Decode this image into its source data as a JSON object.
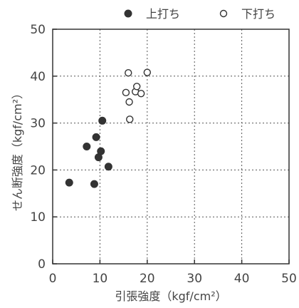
{
  "chart_data": {
    "type": "scatter",
    "title": "",
    "xlabel": "引張強度（kgf/cm²）",
    "ylabel": "せん断強度（kgf/cm²）",
    "xlim": [
      0,
      50
    ],
    "ylim": [
      0,
      50
    ],
    "xticks": [
      0,
      10,
      20,
      30,
      40,
      50
    ],
    "yticks": [
      0,
      10,
      20,
      30,
      40,
      50
    ],
    "grid": true,
    "legend_position": "top-right",
    "series": [
      {
        "name": "上打ち",
        "marker": "filled-circle",
        "color": "#333333",
        "points": [
          {
            "x": 3.5,
            "y": 17.3
          },
          {
            "x": 7.2,
            "y": 25.0
          },
          {
            "x": 8.8,
            "y": 17.0
          },
          {
            "x": 9.2,
            "y": 27.0
          },
          {
            "x": 9.7,
            "y": 22.7
          },
          {
            "x": 10.2,
            "y": 24.0
          },
          {
            "x": 10.5,
            "y": 30.5
          },
          {
            "x": 11.8,
            "y": 20.7
          }
        ]
      },
      {
        "name": "下打ち",
        "marker": "open-circle",
        "color": "#333333",
        "points": [
          {
            "x": 15.5,
            "y": 36.5
          },
          {
            "x": 16.0,
            "y": 40.7
          },
          {
            "x": 16.2,
            "y": 34.5
          },
          {
            "x": 16.3,
            "y": 30.8
          },
          {
            "x": 17.5,
            "y": 36.7
          },
          {
            "x": 17.8,
            "y": 37.8
          },
          {
            "x": 18.7,
            "y": 36.3
          },
          {
            "x": 20.0,
            "y": 40.8
          }
        ]
      }
    ]
  }
}
